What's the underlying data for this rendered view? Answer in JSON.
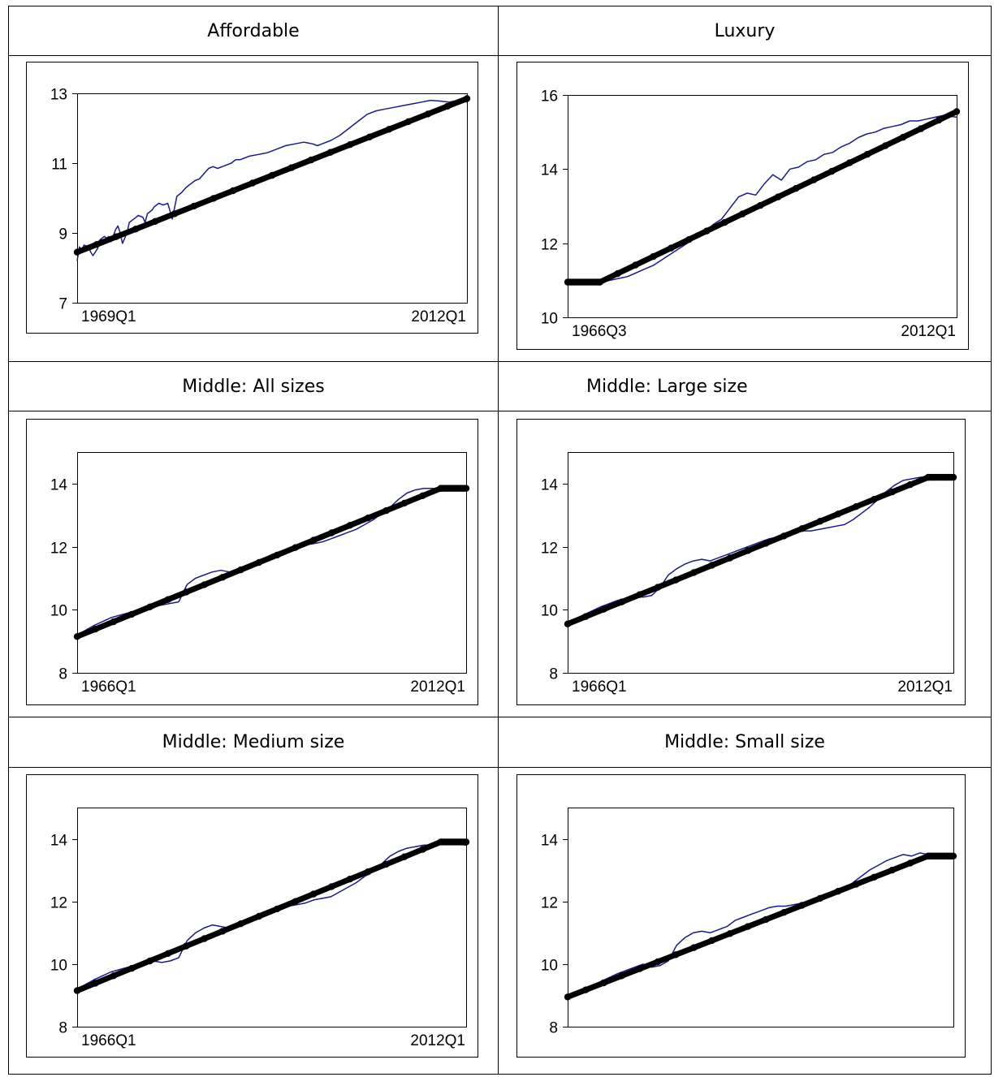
{
  "panels": [
    {
      "title": "Affordable"
    },
    {
      "title": "Luxury"
    },
    {
      "title": "Middle: All sizes"
    },
    {
      "title": "Middle: Large size"
    },
    {
      "title": "Middle: Medium size"
    },
    {
      "title": "Middle: Small size"
    }
  ],
  "colors": {
    "actual": "#1a1a8c",
    "trend": "#000000"
  },
  "chart_data": [
    {
      "type": "line",
      "title": "Affordable",
      "ylim": [
        7,
        13
      ],
      "yticks": [
        7,
        9,
        11,
        13
      ],
      "xstart": "1969Q1",
      "xend": "2012Q1",
      "xticklabels": [
        "1969Q1",
        "2012Q1"
      ],
      "series": [
        {
          "key": "actual",
          "x": [
            0,
            1,
            2,
            3,
            5,
            6,
            7,
            9,
            10,
            12,
            13,
            14,
            15,
            17,
            18,
            19,
            20,
            22,
            23,
            25,
            26,
            27,
            29,
            30,
            31,
            33,
            34,
            36,
            38,
            40,
            42,
            44,
            46,
            48,
            50,
            52,
            54,
            56,
            58,
            60,
            62,
            64,
            66,
            68,
            70,
            72,
            74,
            76,
            80,
            84,
            88,
            92,
            96,
            100,
            104,
            106,
            108,
            112,
            116,
            120,
            124,
            128,
            132,
            136,
            140,
            144,
            148,
            152,
            156,
            160,
            164,
            168,
            172
          ],
          "y": [
            8.2,
            8.6,
            8.5,
            8.65,
            8.6,
            8.45,
            8.35,
            8.55,
            8.8,
            8.9,
            8.85,
            8.9,
            8.75,
            9.1,
            9.2,
            9.0,
            8.7,
            9.0,
            9.3,
            9.4,
            9.45,
            9.5,
            9.45,
            9.3,
            9.55,
            9.65,
            9.75,
            9.85,
            9.8,
            9.85,
            9.4,
            10.05,
            10.15,
            10.3,
            10.4,
            10.5,
            10.55,
            10.7,
            10.85,
            10.9,
            10.85,
            10.9,
            10.95,
            11.0,
            11.1,
            11.1,
            11.15,
            11.2,
            11.25,
            11.3,
            11.4,
            11.5,
            11.55,
            11.6,
            11.55,
            11.5,
            11.55,
            11.65,
            11.8,
            12.0,
            12.2,
            12.4,
            12.5,
            12.55,
            12.6,
            12.65,
            12.7,
            12.75,
            12.8,
            12.78,
            12.75,
            12.8,
            12.75
          ]
        },
        {
          "key": "trend",
          "x": [
            0,
            172
          ],
          "y": [
            8.45,
            12.85
          ]
        }
      ]
    },
    {
      "type": "line",
      "title": "Luxury",
      "ylim": [
        10,
        16
      ],
      "yticks": [
        10,
        12,
        14,
        16
      ],
      "xstart": "1966Q3",
      "xend": "2012Q1",
      "xticklabels": [
        "1966Q3",
        "2012Q1"
      ],
      "series": [
        {
          "key": "actual",
          "x": [
            0,
            4,
            8,
            12,
            16,
            20,
            24,
            28,
            32,
            36,
            40,
            44,
            48,
            52,
            56,
            60,
            64,
            68,
            72,
            76,
            80,
            84,
            88,
            92,
            96,
            100,
            104,
            108,
            112,
            116,
            120,
            124,
            128,
            132,
            136,
            140,
            144,
            148,
            152,
            156,
            160,
            164,
            168,
            172,
            176,
            182
          ],
          "y": [
            10.95,
            10.9,
            10.95,
            10.9,
            10.95,
            11.0,
            11.05,
            11.1,
            11.2,
            11.3,
            11.4,
            11.55,
            11.7,
            11.85,
            12.0,
            12.15,
            12.3,
            12.5,
            12.65,
            12.95,
            13.25,
            13.35,
            13.3,
            13.6,
            13.85,
            13.7,
            14.0,
            14.05,
            14.2,
            14.25,
            14.4,
            14.45,
            14.6,
            14.7,
            14.85,
            14.95,
            15.0,
            15.1,
            15.15,
            15.2,
            15.3,
            15.3,
            15.35,
            15.4,
            15.45,
            15.4
          ]
        },
        {
          "key": "trend",
          "x": [
            0,
            15,
            182
          ],
          "y": [
            10.95,
            10.95,
            15.55
          ]
        }
      ]
    },
    {
      "type": "line",
      "title": "Middle: All sizes",
      "ylim": [
        8,
        15
      ],
      "yticks": [
        8,
        10,
        12,
        14
      ],
      "xstart": "1966Q1",
      "xend": "2012Q1",
      "xticklabels": [
        "1966Q1",
        "2012Q1"
      ],
      "series": [
        {
          "key": "actual",
          "x": [
            0,
            8,
            16,
            24,
            32,
            36,
            40,
            44,
            48,
            52,
            56,
            60,
            64,
            68,
            72,
            76,
            80,
            84,
            88,
            92,
            96,
            100,
            104,
            108,
            112,
            116,
            120,
            124,
            128,
            132,
            136,
            140,
            144,
            148,
            152,
            156,
            160,
            164,
            168,
            172,
            176,
            184
          ],
          "y": [
            9.2,
            9.5,
            9.75,
            9.9,
            10.05,
            10.1,
            10.15,
            10.2,
            10.25,
            10.8,
            11.0,
            11.1,
            11.2,
            11.25,
            11.2,
            11.3,
            11.4,
            11.5,
            11.6,
            11.75,
            11.85,
            11.9,
            12.0,
            12.05,
            12.1,
            12.15,
            12.25,
            12.35,
            12.45,
            12.55,
            12.7,
            12.85,
            13.05,
            13.25,
            13.5,
            13.7,
            13.8,
            13.85,
            13.85,
            13.82,
            13.85,
            13.85
          ]
        },
        {
          "key": "trend",
          "x": [
            0,
            172,
            184
          ],
          "y": [
            9.15,
            13.85,
            13.85
          ]
        }
      ]
    },
    {
      "type": "line",
      "title": "Middle: Large size",
      "ylim": [
        8,
        15
      ],
      "yticks": [
        8,
        10,
        12,
        14
      ],
      "xstart": "1966Q1",
      "xend": "2012Q1",
      "xticklabels": [
        "1966Q1",
        "2012Q1"
      ],
      "series": [
        {
          "key": "actual",
          "x": [
            0,
            8,
            16,
            24,
            28,
            32,
            36,
            40,
            44,
            48,
            52,
            56,
            60,
            64,
            68,
            72,
            76,
            80,
            84,
            88,
            92,
            96,
            100,
            104,
            108,
            112,
            116,
            120,
            124,
            128,
            132,
            136,
            140,
            144,
            148,
            152,
            156,
            160,
            164,
            168,
            172,
            176,
            184
          ],
          "y": [
            9.6,
            9.85,
            10.1,
            10.3,
            10.35,
            10.45,
            10.4,
            10.45,
            10.7,
            11.1,
            11.3,
            11.45,
            11.55,
            11.6,
            11.55,
            11.65,
            11.75,
            11.85,
            11.95,
            12.05,
            12.15,
            12.25,
            12.3,
            12.35,
            12.45,
            12.5,
            12.5,
            12.55,
            12.6,
            12.65,
            12.7,
            12.85,
            13.05,
            13.25,
            13.5,
            13.75,
            13.95,
            14.1,
            14.15,
            14.2,
            14.22,
            14.2,
            14.2
          ]
        },
        {
          "key": "trend",
          "x": [
            0,
            172,
            184
          ],
          "y": [
            9.55,
            14.2,
            14.2
          ]
        }
      ]
    },
    {
      "type": "line",
      "title": "Middle: Medium size",
      "ylim": [
        8,
        15
      ],
      "yticks": [
        8,
        10,
        12,
        14
      ],
      "xstart": "1966Q1",
      "xend": "2012Q1",
      "xticklabels": [
        "1966Q1",
        "2012Q1"
      ],
      "series": [
        {
          "key": "actual",
          "x": [
            0,
            8,
            16,
            24,
            32,
            36,
            40,
            44,
            48,
            52,
            56,
            60,
            64,
            68,
            72,
            76,
            80,
            84,
            88,
            92,
            96,
            100,
            104,
            108,
            112,
            116,
            120,
            124,
            128,
            132,
            136,
            140,
            144,
            148,
            152,
            156,
            160,
            164,
            168,
            172,
            176,
            184
          ],
          "y": [
            9.2,
            9.5,
            9.75,
            9.9,
            10.05,
            10.1,
            10.05,
            10.1,
            10.2,
            10.75,
            11.0,
            11.15,
            11.25,
            11.2,
            11.15,
            11.25,
            11.35,
            11.45,
            11.55,
            11.65,
            11.75,
            11.85,
            11.9,
            11.95,
            12.05,
            12.1,
            12.15,
            12.3,
            12.45,
            12.6,
            12.8,
            12.95,
            13.2,
            13.45,
            13.6,
            13.7,
            13.75,
            13.8,
            13.8,
            13.82,
            13.85,
            13.8
          ]
        },
        {
          "key": "trend",
          "x": [
            0,
            172,
            184
          ],
          "y": [
            9.15,
            13.9,
            13.9
          ]
        }
      ]
    },
    {
      "type": "line",
      "title": "Middle: Small size",
      "ylim": [
        8,
        15
      ],
      "yticks": [
        8,
        10,
        12,
        14
      ],
      "xstart": "",
      "xend": "",
      "xticklabels": [],
      "series": [
        {
          "key": "actual",
          "x": [
            0,
            8,
            16,
            24,
            32,
            36,
            40,
            44,
            48,
            52,
            56,
            60,
            64,
            68,
            72,
            76,
            80,
            84,
            88,
            92,
            96,
            100,
            104,
            108,
            112,
            116,
            120,
            124,
            128,
            132,
            136,
            140,
            144,
            148,
            152,
            156,
            160,
            164,
            168,
            172,
            176,
            184
          ],
          "y": [
            9.0,
            9.2,
            9.45,
            9.7,
            9.9,
            10.0,
            9.9,
            9.95,
            10.1,
            10.6,
            10.85,
            11.0,
            11.05,
            11.0,
            11.1,
            11.2,
            11.4,
            11.5,
            11.6,
            11.7,
            11.8,
            11.85,
            11.85,
            11.9,
            11.95,
            12.0,
            12.05,
            12.15,
            12.25,
            12.4,
            12.6,
            12.8,
            13.0,
            13.15,
            13.3,
            13.4,
            13.5,
            13.45,
            13.55,
            13.5,
            13.5,
            13.45
          ]
        },
        {
          "key": "trend",
          "x": [
            0,
            172,
            184
          ],
          "y": [
            8.95,
            13.45,
            13.45
          ]
        }
      ]
    }
  ]
}
